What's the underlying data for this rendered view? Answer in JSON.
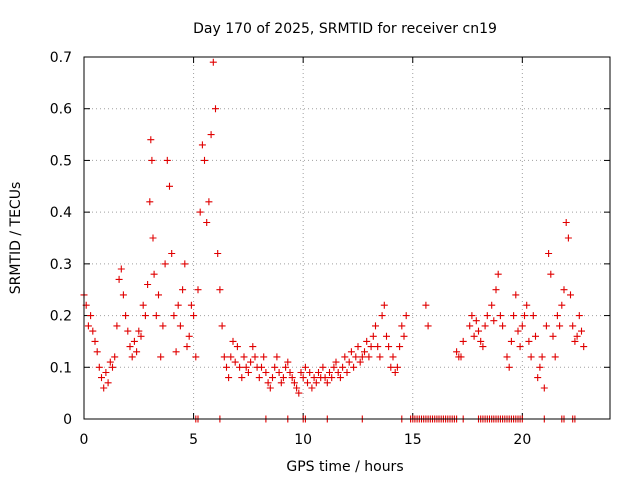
{
  "chart_data": {
    "type": "scatter",
    "title": "Day 170 of 2025, SRMTID for receiver cn19",
    "xlabel": "GPS time / hours",
    "ylabel": "SRMTID / TECUs",
    "xlim": [
      0,
      24
    ],
    "ylim": [
      0,
      0.7
    ],
    "xticks": [
      0,
      5,
      10,
      15,
      20
    ],
    "xtick_labels": [
      "0",
      "5",
      "10",
      "15",
      "20"
    ],
    "yticks": [
      0,
      0.1,
      0.2,
      0.3,
      0.4,
      0.5,
      0.6,
      0.7
    ],
    "ytick_labels": [
      "0",
      "0.1",
      "0.2",
      "0.3",
      "0.4",
      "0.5",
      "0.6",
      "0.7"
    ],
    "grid": true,
    "marker": "+",
    "series": [
      {
        "name": "SRMTID",
        "color": "#e00000",
        "x": [
          0.0,
          0.1,
          0.2,
          0.3,
          0.4,
          0.5,
          0.6,
          0.7,
          0.8,
          0.9,
          1.0,
          1.1,
          1.2,
          1.3,
          1.4,
          1.5,
          1.6,
          1.7,
          1.8,
          1.9,
          2.0,
          2.1,
          2.2,
          2.3,
          2.4,
          2.5,
          2.6,
          2.7,
          2.8,
          2.9,
          3.0,
          3.05,
          3.1,
          3.15,
          3.2,
          3.3,
          3.4,
          3.5,
          3.6,
          3.7,
          3.8,
          3.9,
          4.0,
          4.1,
          4.2,
          4.3,
          4.4,
          4.5,
          4.6,
          4.7,
          4.8,
          4.9,
          5.0,
          5.1,
          5.2,
          5.3,
          5.4,
          5.5,
          5.6,
          5.7,
          5.8,
          5.9,
          6.0,
          6.1,
          6.2,
          6.3,
          6.4,
          6.5,
          6.6,
          6.7,
          6.8,
          6.9,
          7.0,
          7.1,
          7.2,
          7.3,
          7.4,
          7.5,
          7.6,
          7.7,
          7.8,
          7.9,
          8.0,
          8.1,
          8.2,
          8.3,
          8.4,
          8.5,
          8.6,
          8.7,
          8.8,
          8.9,
          9.0,
          9.1,
          9.2,
          9.3,
          9.4,
          9.5,
          9.6,
          9.7,
          9.8,
          9.9,
          10.0,
          10.1,
          10.2,
          10.3,
          10.4,
          10.5,
          10.6,
          10.7,
          10.8,
          10.9,
          11.0,
          11.1,
          11.2,
          11.3,
          11.4,
          11.5,
          11.6,
          11.7,
          11.8,
          11.9,
          12.0,
          12.1,
          12.2,
          12.3,
          12.4,
          12.5,
          12.6,
          12.7,
          12.8,
          12.9,
          13.0,
          13.1,
          13.2,
          13.3,
          13.4,
          13.5,
          13.6,
          13.7,
          13.8,
          13.9,
          14.0,
          14.1,
          14.2,
          14.3,
          14.4,
          14.5,
          14.6,
          14.7,
          15.6,
          15.7,
          17.0,
          17.1,
          17.2,
          17.3,
          17.6,
          17.7,
          17.8,
          17.9,
          18.0,
          18.1,
          18.2,
          18.3,
          18.4,
          18.6,
          18.7,
          18.8,
          18.9,
          19.0,
          19.1,
          19.3,
          19.4,
          19.5,
          19.6,
          19.7,
          19.8,
          19.9,
          20.0,
          20.1,
          20.2,
          20.3,
          20.4,
          20.5,
          20.6,
          20.7,
          20.8,
          20.9,
          21.0,
          21.1,
          21.2,
          21.3,
          21.4,
          21.5,
          21.6,
          21.7,
          21.8,
          21.9,
          22.0,
          22.1,
          22.2,
          22.3,
          22.4,
          22.5,
          22.6,
          22.7,
          22.8
        ],
        "y": [
          0.24,
          0.22,
          0.18,
          0.2,
          0.17,
          0.15,
          0.13,
          0.1,
          0.08,
          0.06,
          0.09,
          0.07,
          0.11,
          0.1,
          0.12,
          0.18,
          0.27,
          0.29,
          0.24,
          0.2,
          0.17,
          0.14,
          0.12,
          0.15,
          0.13,
          0.17,
          0.16,
          0.22,
          0.2,
          0.26,
          0.42,
          0.54,
          0.5,
          0.35,
          0.28,
          0.2,
          0.24,
          0.12,
          0.18,
          0.3,
          0.5,
          0.45,
          0.32,
          0.2,
          0.13,
          0.22,
          0.18,
          0.25,
          0.3,
          0.14,
          0.16,
          0.22,
          0.2,
          0.12,
          0.25,
          0.4,
          0.53,
          0.5,
          0.38,
          0.42,
          0.55,
          0.69,
          0.6,
          0.32,
          0.25,
          0.18,
          0.12,
          0.1,
          0.08,
          0.12,
          0.15,
          0.11,
          0.14,
          0.1,
          0.08,
          0.12,
          0.1,
          0.09,
          0.11,
          0.14,
          0.12,
          0.1,
          0.08,
          0.1,
          0.12,
          0.09,
          0.07,
          0.06,
          0.08,
          0.1,
          0.12,
          0.09,
          0.07,
          0.08,
          0.1,
          0.11,
          0.09,
          0.08,
          0.07,
          0.06,
          0.05,
          0.09,
          0.08,
          0.1,
          0.07,
          0.09,
          0.06,
          0.08,
          0.07,
          0.09,
          0.08,
          0.1,
          0.08,
          0.07,
          0.09,
          0.08,
          0.1,
          0.11,
          0.09,
          0.08,
          0.1,
          0.12,
          0.09,
          0.11,
          0.13,
          0.1,
          0.12,
          0.14,
          0.11,
          0.12,
          0.13,
          0.15,
          0.12,
          0.14,
          0.16,
          0.18,
          0.14,
          0.12,
          0.2,
          0.22,
          0.16,
          0.14,
          0.1,
          0.12,
          0.09,
          0.1,
          0.14,
          0.18,
          0.16,
          0.2,
          0.22,
          0.18,
          0.13,
          0.12,
          0.12,
          0.15,
          0.18,
          0.2,
          0.16,
          0.19,
          0.17,
          0.15,
          0.14,
          0.18,
          0.2,
          0.22,
          0.19,
          0.25,
          0.28,
          0.2,
          0.18,
          0.12,
          0.1,
          0.15,
          0.2,
          0.24,
          0.17,
          0.14,
          0.18,
          0.2,
          0.22,
          0.15,
          0.12,
          0.2,
          0.16,
          0.08,
          0.1,
          0.12,
          0.06,
          0.18,
          0.32,
          0.28,
          0.16,
          0.12,
          0.2,
          0.18,
          0.22,
          0.25,
          0.38,
          0.35,
          0.24,
          0.18,
          0.15,
          0.16,
          0.2,
          0.17,
          0.14
        ]
      },
      {
        "name": "SRMTID zero values",
        "color": "#e00000",
        "x": [
          5.1,
          5.2,
          6.2,
          8.3,
          9.3,
          10.0,
          10.1,
          11.1,
          12.7,
          14.5,
          14.9,
          15.0,
          15.1,
          15.2,
          15.3,
          15.4,
          15.5,
          15.6,
          15.7,
          15.8,
          15.9,
          16.0,
          16.1,
          16.2,
          16.3,
          16.4,
          16.5,
          16.6,
          16.7,
          16.8,
          16.9,
          17.0,
          17.3,
          18.0,
          18.1,
          18.2,
          18.3,
          18.4,
          18.5,
          18.6,
          18.7,
          18.8,
          18.9,
          19.0,
          19.1,
          19.2,
          19.3,
          19.4,
          19.5,
          19.6,
          19.7,
          19.8,
          19.9,
          20.0,
          21.0,
          21.8,
          21.9,
          22.3,
          22.4
        ],
        "y": [
          0,
          0,
          0,
          0,
          0,
          0,
          0,
          0,
          0,
          0,
          0,
          0,
          0,
          0,
          0,
          0,
          0,
          0,
          0,
          0,
          0,
          0,
          0,
          0,
          0,
          0,
          0,
          0,
          0,
          0,
          0,
          0,
          0,
          0,
          0,
          0,
          0,
          0,
          0,
          0,
          0,
          0,
          0,
          0,
          0,
          0,
          0,
          0,
          0,
          0,
          0,
          0,
          0,
          0,
          0,
          0,
          0,
          0,
          0
        ]
      }
    ]
  }
}
